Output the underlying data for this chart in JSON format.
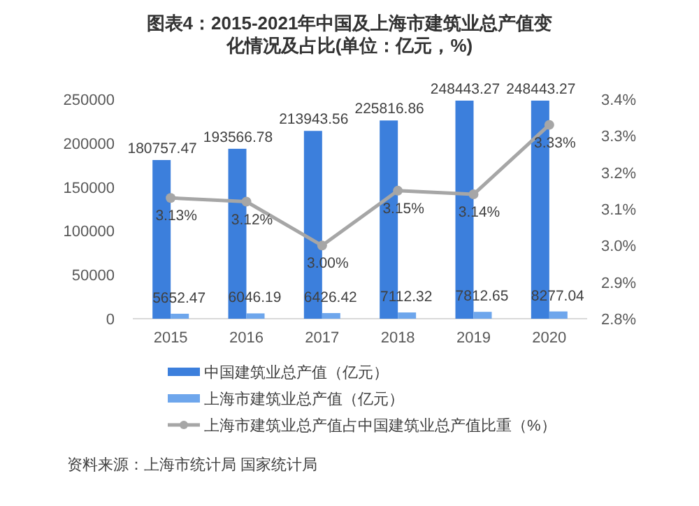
{
  "chart_data": {
    "type": "bar",
    "title": "图表4：2015-2021年中国及上海市建筑业总产值变化情况及占比(单位：亿元，%)",
    "categories": [
      "2015",
      "2016",
      "2017",
      "2018",
      "2019",
      "2020"
    ],
    "series": [
      {
        "name": "中国建筑业总产值（亿元）",
        "color": "#3c7fdc",
        "values": [
          180757.47,
          193566.78,
          213943.56,
          225816.86,
          248443.27,
          248443.27
        ],
        "value_labels": [
          "180757.47",
          "193566.78",
          "213943.56",
          "225816.86",
          "248443.27",
          "248443.27"
        ]
      },
      {
        "name": "上海市建筑业总产值（亿元）",
        "color": "#6ea6ec",
        "values": [
          5652.47,
          6046.19,
          6426.42,
          7112.32,
          7812.65,
          8277.04
        ],
        "value_labels": [
          "5652.47",
          "6046.19",
          "6426.42",
          "7112.32",
          "7812.65",
          "8277.04"
        ]
      },
      {
        "name": "上海市建筑业总产值占中国建筑业总产值比重（%）",
        "type": "line",
        "axis": "y2",
        "color": "#a6a6a6",
        "marker": "circle",
        "values": [
          3.13,
          3.12,
          3.0,
          3.15,
          3.14,
          3.33
        ],
        "value_labels": [
          "3.13%",
          "3.12%",
          "3.00%",
          "3.15%",
          "3.14%",
          "3.33%"
        ]
      }
    ],
    "ylim": [
      0,
      250000
    ],
    "yticks": [
      0,
      50000,
      100000,
      150000,
      200000,
      250000
    ],
    "y2lim": [
      2.8,
      3.4
    ],
    "y2ticks": [
      {
        "value": 2.8,
        "label": "2.8%"
      },
      {
        "value": 2.9,
        "label": "2.9%"
      },
      {
        "value": 3.0,
        "label": "3.0%"
      },
      {
        "value": 3.1,
        "label": "3.1%"
      },
      {
        "value": 3.2,
        "label": "3.2%"
      },
      {
        "value": 3.3,
        "label": "3.3%"
      },
      {
        "value": 3.4,
        "label": "3.4%"
      }
    ],
    "grid": false,
    "legend": "bottom",
    "annotations": [
      "资料来源：上海市统计局 国家统计局"
    ]
  }
}
